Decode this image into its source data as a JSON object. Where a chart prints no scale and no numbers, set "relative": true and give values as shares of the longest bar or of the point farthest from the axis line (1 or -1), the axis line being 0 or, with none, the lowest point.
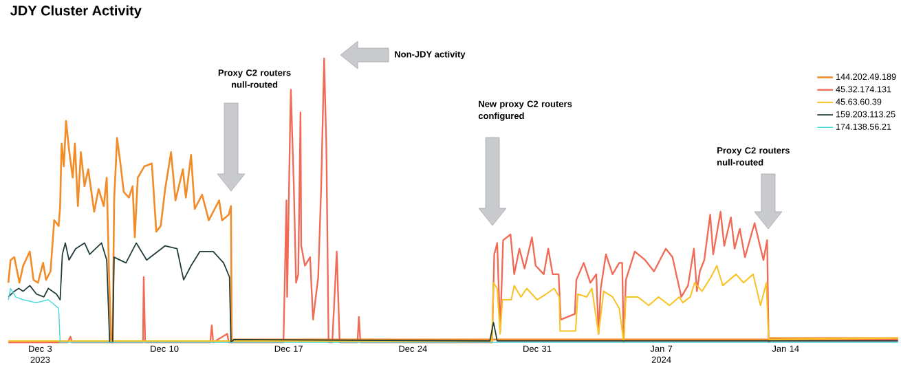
{
  "chart_data": {
    "type": "line",
    "title": "JDY Cluster Activity",
    "relative": true,
    "legend": "top right",
    "tick_labels": "x",
    "xlim": [
      "2023-12-01T03:00",
      "2024-01-20T12:00"
    ],
    "xticks": [
      {
        "value": "2023-12-03",
        "label": "Dec 3 2023"
      },
      {
        "value": "2023-12-10",
        "label": "Dec 10"
      },
      {
        "value": "2023-12-17",
        "label": "Dec 17"
      },
      {
        "value": "2023-12-24",
        "label": "Dec 24"
      },
      {
        "value": "2023-12-31",
        "label": "Dec 31"
      },
      {
        "value": "2024-01-07",
        "label": "Jan 7 2024"
      },
      {
        "value": "2024-01-14",
        "label": "Jan 14"
      }
    ],
    "annotations": [
      "Proxy C2 routers null-routed",
      "Non-JDY activity",
      "New proxy C2 routers configured",
      "Proxy C2 routers null-routed"
    ],
    "series": [
      {
        "name": "144.202.49.189",
        "color": "#f28c28",
        "x": [
          "2023-12-01T05:00",
          "2023-12-01T08:00",
          "2023-12-01T13:00",
          "2023-12-01T20:00",
          "2023-12-02T01:00",
          "2023-12-02T10:00",
          "2023-12-02T15:00",
          "2023-12-02T21:00",
          "2023-12-03T04:00",
          "2023-12-03T08:00",
          "2023-12-03T14:00",
          "2023-12-03T19:00",
          "2023-12-04T01:00",
          "2023-12-04T03:00",
          "2023-12-04T05:00",
          "2023-12-04T08:00",
          "2023-12-04T11:00",
          "2023-12-04T15:00",
          "2023-12-04T20:00",
          "2023-12-04T23:00",
          "2023-12-05T03:00",
          "2023-12-05T07:00",
          "2023-12-05T12:00",
          "2023-12-05T17:00",
          "2023-12-06T01:00",
          "2023-12-06T07:00",
          "2023-12-06T14:00",
          "2023-12-06T18:00",
          "2023-12-06T21:00",
          "2023-12-07T00:00",
          "2023-12-07T02:00",
          "2023-12-07T04:00",
          "2023-12-07T08:00",
          "2023-12-07T13:00",
          "2023-12-07T17:00",
          "2023-12-08T00:00",
          "2023-12-08T05:00",
          "2023-12-08T08:00",
          "2023-12-08T12:00",
          "2023-12-08T21:00",
          "2023-12-09T07:00",
          "2023-12-09T13:00",
          "2023-12-09T19:00",
          "2023-12-10T01:00",
          "2023-12-10T09:00",
          "2023-12-10T15:00",
          "2023-12-11T01:00",
          "2023-12-11T05:00",
          "2023-12-11T12:00",
          "2023-12-11T17:00",
          "2023-12-12T03:00",
          "2023-12-12T12:00",
          "2023-12-12T18:00",
          "2023-12-13T02:00",
          "2023-12-13T06:00",
          "2023-12-13T15:00",
          "2023-12-13T18:00",
          "2023-12-13T19:00",
          "2023-12-13T22:00",
          "2023-12-29T00:00",
          "2024-01-13T01:00",
          "2024-01-13T03:00",
          "2024-01-20T08:00"
        ],
        "values": [
          0.21,
          0.29,
          0.3,
          0.21,
          0.27,
          0.32,
          0.22,
          0.21,
          0.28,
          0.22,
          0.25,
          0.43,
          0.41,
          0.48,
          0.7,
          0.62,
          0.78,
          0.68,
          0.58,
          0.7,
          0.48,
          0.67,
          0.55,
          0.61,
          0.46,
          0.54,
          0.48,
          0.58,
          0.25,
          0,
          0,
          0.5,
          0.72,
          0.62,
          0.53,
          0.51,
          0.55,
          0.37,
          0.58,
          0.62,
          0.63,
          0.39,
          0.41,
          0.54,
          0.67,
          0.5,
          0.61,
          0.51,
          0.66,
          0.47,
          0.52,
          0.43,
          0.46,
          0.5,
          0.43,
          0.45,
          0.48,
          0,
          0.01,
          0.01,
          0.01,
          0.015,
          0.015
        ]
      },
      {
        "name": "45.32.174.131",
        "color": "#f06a55",
        "x": [
          "2023-12-01T05:00",
          "2023-12-04T13:00",
          "2023-12-04T17:00",
          "2023-12-04T19:00",
          "2023-12-08T19:00",
          "2023-12-08T20:00",
          "2023-12-08T22:00",
          "2023-12-12T14:00",
          "2023-12-12T16:00",
          "2023-12-12T18:00",
          "2023-12-13T13:00",
          "2023-12-13T15:00",
          "2023-12-16T17:00",
          "2023-12-16T21:00",
          "2023-12-16T22:00",
          "2023-12-17T02:00",
          "2023-12-17T03:00",
          "2023-12-17T07:00",
          "2023-12-17T10:00",
          "2023-12-17T13:00",
          "2023-12-17T16:00",
          "2023-12-17T17:00",
          "2023-12-17T22:00",
          "2023-12-18T05:00",
          "2023-12-18T09:00",
          "2023-12-18T16:00",
          "2023-12-18T20:00",
          "2023-12-19T00:00",
          "2023-12-19T03:00",
          "2023-12-19T06:00",
          "2023-12-19T11:00",
          "2023-12-19T17:00",
          "2023-12-19T21:00",
          "2023-12-20T21:00",
          "2023-12-20T23:00",
          "2023-12-21T01:00",
          "2023-12-28T11:00",
          "2023-12-28T14:00",
          "2023-12-28T18:00",
          "2023-12-28T22:00",
          "2023-12-29T02:00",
          "2023-12-29T12:00",
          "2023-12-29T17:00",
          "2023-12-30T00:00",
          "2023-12-30T07:00",
          "2023-12-30T17:00",
          "2023-12-30T22:00",
          "2023-12-31T09:00",
          "2023-12-31T15:00",
          "2023-12-31T21:00",
          "2024-01-01T05:00",
          "2024-01-01T08:00",
          "2024-01-02T03:00",
          "2024-01-02T05:00",
          "2024-01-02T15:00",
          "2024-01-03T00:00",
          "2024-01-03T08:00",
          "2024-01-03T11:00",
          "2024-01-03T14:00",
          "2024-01-03T21:00",
          "2024-01-04T06:00",
          "2024-01-04T15:00",
          "2024-01-04T19:00",
          "2024-01-04T21:00",
          "2024-01-05T00:00",
          "2024-01-05T12:00",
          "2024-01-06T02:00",
          "2024-01-06T14:00",
          "2024-01-07T06:00",
          "2024-01-07T15:00",
          "2024-01-08T03:00",
          "2024-01-08T12:00",
          "2024-01-08T20:00",
          "2024-01-09T00:00",
          "2024-01-09T04:00",
          "2024-01-09T10:00",
          "2024-01-09T18:00",
          "2024-01-09T22:00",
          "2024-01-10T08:00",
          "2024-01-10T13:00",
          "2024-01-10T22:00",
          "2024-01-11T03:00",
          "2024-01-11T10:00",
          "2024-01-11T17:00",
          "2024-01-12T06:00",
          "2024-01-12T18:00",
          "2024-01-12T23:00",
          "2024-01-13T01:00",
          "2024-01-13T04:00",
          "2024-01-20T08:00"
        ],
        "values": [
          0,
          0,
          0.02,
          0,
          0,
          0.23,
          0,
          0,
          0.06,
          0,
          0.03,
          0,
          0,
          0.5,
          0.16,
          0.77,
          0.89,
          0.55,
          0.21,
          0.24,
          0.81,
          0.34,
          0.27,
          0.3,
          0.08,
          0.23,
          0.55,
          1.0,
          0.69,
          0,
          0,
          0.32,
          0,
          0,
          0.09,
          0,
          0,
          0.31,
          0.35,
          0.04,
          0.36,
          0.38,
          0.24,
          0.33,
          0.26,
          0.37,
          0.27,
          0.24,
          0.33,
          0.24,
          0.24,
          0.08,
          0.1,
          0.22,
          0.28,
          0.21,
          0.24,
          0.03,
          0.19,
          0.31,
          0.24,
          0.28,
          0.28,
          0,
          0.22,
          0.32,
          0.29,
          0.25,
          0.33,
          0.3,
          0.16,
          0.2,
          0.33,
          0.18,
          0.25,
          0.29,
          0.45,
          0.31,
          0.46,
          0.34,
          0.44,
          0.33,
          0.4,
          0.3,
          0.42,
          0.29,
          0.36,
          0,
          0.01,
          0.01
        ]
      },
      {
        "name": "45.63.60.39",
        "color": "#f7c325",
        "x": [
          "2023-12-01T05:00",
          "2023-12-28T11:00",
          "2023-12-28T13:00",
          "2023-12-28T18:00",
          "2023-12-28T22:00",
          "2023-12-29T01:00",
          "2023-12-29T13:00",
          "2023-12-29T17:00",
          "2023-12-30T02:00",
          "2023-12-30T10:00",
          "2023-12-31T00:00",
          "2023-12-31T12:00",
          "2023-12-31T23:00",
          "2024-01-01T06:00",
          "2024-01-01T07:00",
          "2024-01-02T04:00",
          "2024-01-02T07:00",
          "2024-01-02T19:00",
          "2024-01-03T02:00",
          "2024-01-03T11:00",
          "2024-01-03T18:00",
          "2024-01-04T06:00",
          "2024-01-04T15:00",
          "2024-01-04T21:00",
          "2024-01-05T00:00",
          "2024-01-05T16:00",
          "2024-01-06T07:00",
          "2024-01-06T20:00",
          "2024-01-07T11:00",
          "2024-01-08T00:00",
          "2024-01-08T05:00",
          "2024-01-08T15:00",
          "2024-01-08T21:00",
          "2024-01-09T07:00",
          "2024-01-09T19:00",
          "2024-01-10T03:00",
          "2024-01-10T11:00",
          "2024-01-10T20:00",
          "2024-01-11T05:00",
          "2024-01-11T15:00",
          "2024-01-12T04:00",
          "2024-01-12T14:00",
          "2024-01-12T22:00",
          "2024-01-13T01:00",
          "2024-01-20T08:00"
        ],
        "values": [
          0.005,
          0.005,
          0.21,
          0.19,
          0.03,
          0.15,
          0.15,
          0.2,
          0.16,
          0.19,
          0.15,
          0.17,
          0.19,
          0.16,
          0.04,
          0.04,
          0.17,
          0.16,
          0.19,
          0.03,
          0.18,
          0.16,
          0.12,
          0,
          0.16,
          0.16,
          0.13,
          0.16,
          0.13,
          0.16,
          0.14,
          0.16,
          0.21,
          0.18,
          0.23,
          0.27,
          0.2,
          0.22,
          0.24,
          0.21,
          0.24,
          0.13,
          0.21,
          0.01,
          0.015
        ]
      },
      {
        "name": "159.203.113.25",
        "color": "#1e3a38",
        "x": [
          "2023-12-01T05:00",
          "2023-12-01T13:00",
          "2023-12-01T19:00",
          "2023-12-02T01:00",
          "2023-12-02T10:00",
          "2023-12-02T19:00",
          "2023-12-03T05:00",
          "2023-12-03T11:00",
          "2023-12-03T22:00",
          "2023-12-04T03:00",
          "2023-12-04T06:00",
          "2023-12-04T10:00",
          "2023-12-04T15:00",
          "2023-12-05T00:00",
          "2023-12-05T12:00",
          "2023-12-05T19:00",
          "2023-12-06T11:00",
          "2023-12-06T18:00",
          "2023-12-06T22:00",
          "2023-12-07T02:00",
          "2023-12-07T04:00",
          "2023-12-07T20:00",
          "2023-12-08T10:00",
          "2023-12-09T00:00",
          "2023-12-10T01:00",
          "2023-12-10T17:00",
          "2023-12-11T02:00",
          "2023-12-11T12:00",
          "2023-12-12T00:00",
          "2023-12-12T18:00",
          "2023-12-13T08:00",
          "2023-12-13T16:00",
          "2023-12-13T18:00",
          "2023-12-13T22:00",
          "2023-12-28T08:00",
          "2023-12-28T13:00",
          "2023-12-28T18:00",
          "2024-01-20T08:00"
        ],
        "values": [
          0.16,
          0.18,
          0.19,
          0.18,
          0.2,
          0.17,
          0.16,
          0.19,
          0.17,
          0.15,
          0.31,
          0.35,
          0.29,
          0.33,
          0.35,
          0.31,
          0.35,
          0.29,
          0,
          0,
          0.3,
          0.28,
          0.35,
          0.29,
          0.34,
          0.33,
          0.22,
          0.27,
          0.32,
          0.32,
          0.28,
          0.23,
          0,
          0.01,
          0.005,
          0.07,
          0.005,
          0.005
        ]
      },
      {
        "name": "174.138.56.21",
        "color": "#4dd9e0",
        "x": [
          "2023-12-01T05:00",
          "2023-12-01T08:00",
          "2023-12-01T15:00",
          "2023-12-02T01:00",
          "2023-12-02T19:00",
          "2023-12-03T11:00",
          "2023-12-04T01:00",
          "2023-12-04T03:00",
          "2024-01-20T08:00"
        ],
        "values": [
          0.15,
          0.19,
          0.16,
          0.15,
          0.14,
          0.15,
          0.12,
          0,
          0
        ]
      }
    ]
  }
}
